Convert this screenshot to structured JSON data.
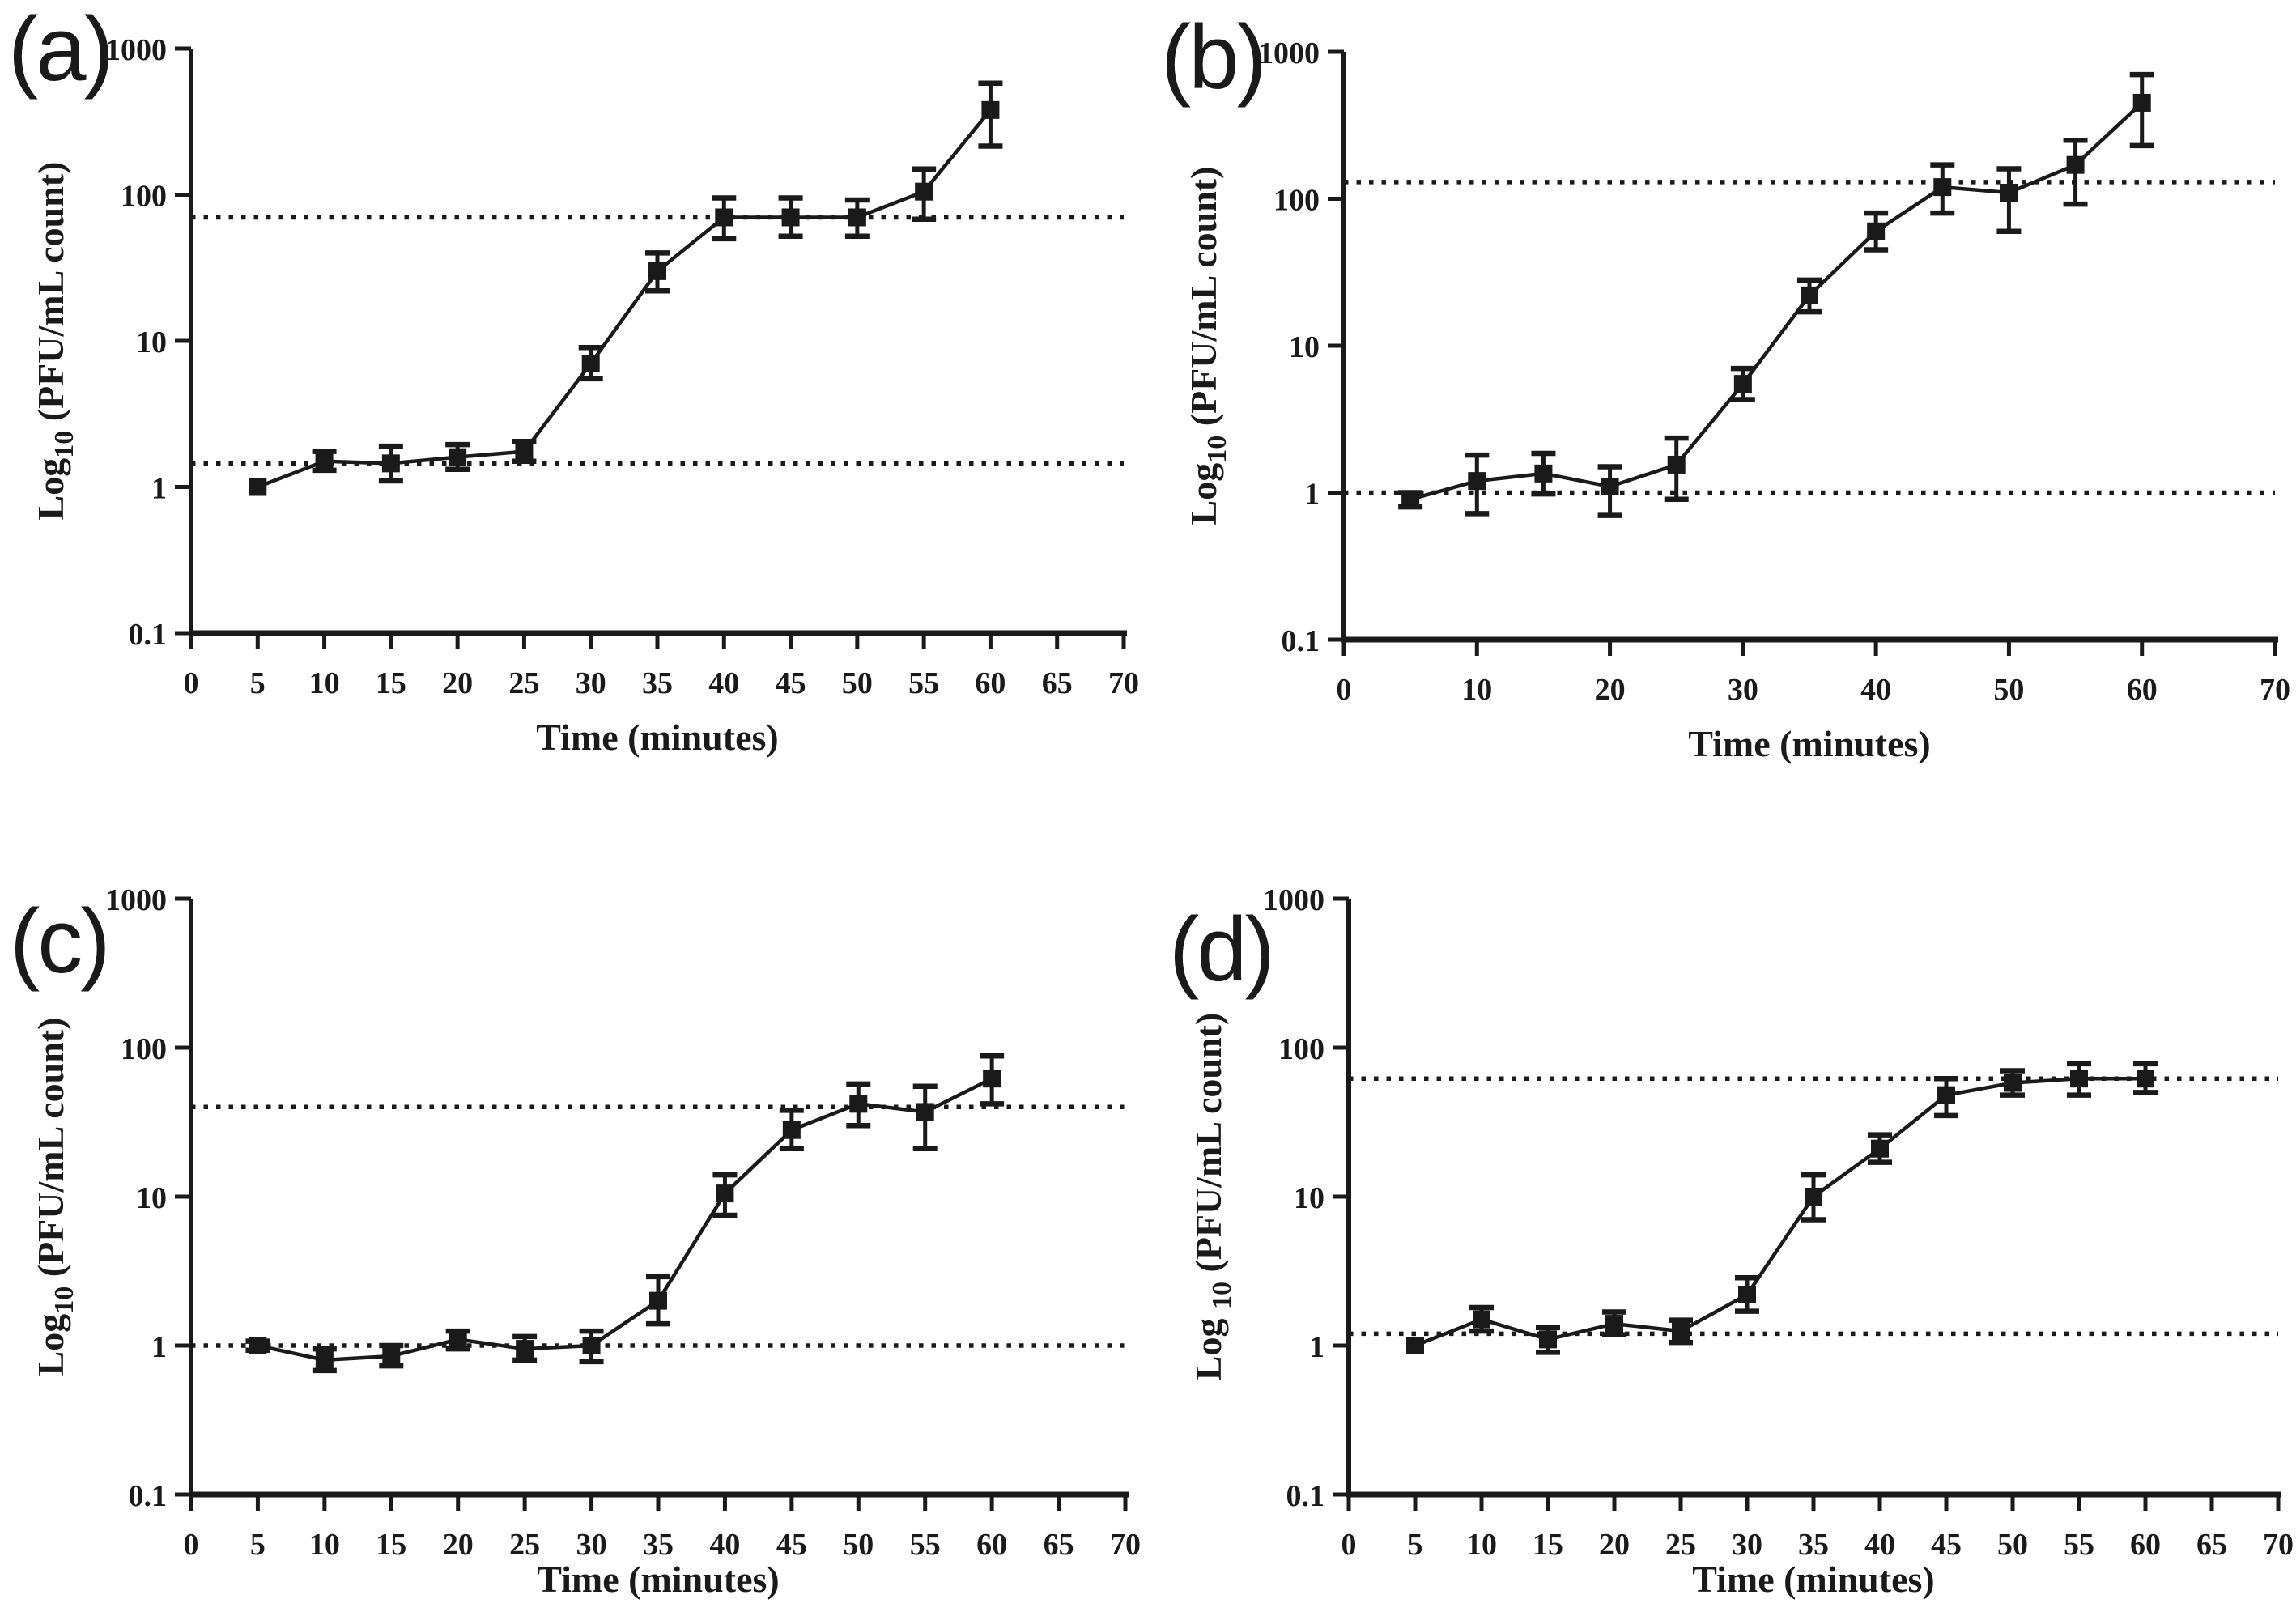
{
  "figure": {
    "background_color": "#ffffff",
    "line_color": "#1a1a1a",
    "ref_line_color": "#1a1a1a"
  },
  "chart_data": [
    {
      "panel_label": "(a)",
      "type": "line",
      "title": "",
      "xlabel": "Time (minutes)",
      "ylabel": "Log10 (PFU/mL count)",
      "ylabel_prefix": "Log",
      "ylabel_sub": "10",
      "ylabel_rest": " (PFU/mL count)",
      "xlim": [
        0,
        70
      ],
      "ylim": [
        0.1,
        1000
      ],
      "x_ticks": [
        0,
        5,
        10,
        15,
        20,
        25,
        30,
        35,
        40,
        45,
        50,
        55,
        60,
        65,
        70
      ],
      "x_tick_labels": [
        "0",
        "5",
        "10",
        "15",
        "20",
        "25",
        "30",
        "35",
        "40",
        "45",
        "50",
        "55",
        "60",
        "65",
        "70"
      ],
      "y_ticks": [
        0.1,
        1,
        10,
        100,
        1000
      ],
      "y_tick_labels": [
        "0.1",
        "1",
        "10",
        "100",
        "1000"
      ],
      "grid": false,
      "legend": null,
      "x": [
        5,
        10,
        15,
        20,
        25,
        30,
        35,
        40,
        45,
        50,
        55,
        60
      ],
      "y": [
        1.0,
        1.5,
        1.45,
        1.6,
        1.75,
        7,
        30,
        70,
        70,
        70,
        105,
        380
      ],
      "err_low": [
        1.0,
        1.3,
        1.1,
        1.32,
        1.5,
        5.5,
        22,
        50,
        52,
        52,
        68,
        215
      ],
      "err_high": [
        1.0,
        1.75,
        1.9,
        1.95,
        2.05,
        9,
        40,
        95,
        95,
        92,
        150,
        580
      ],
      "ref_lines": [
        70,
        1.45
      ]
    },
    {
      "panel_label": "(b)",
      "type": "line",
      "title": "",
      "xlabel": "Time (minutes)",
      "ylabel": "Log10 (PFU/mL count)",
      "ylabel_prefix": "Log",
      "ylabel_sub": "10",
      "ylabel_rest": " (PFU/mL count)",
      "xlim": [
        0,
        70
      ],
      "ylim": [
        0.1,
        1000
      ],
      "x_ticks": [
        0,
        10,
        20,
        30,
        40,
        50,
        60,
        70
      ],
      "x_tick_labels": [
        "0",
        "10",
        "20",
        "30",
        "40",
        "50",
        "60",
        "70"
      ],
      "y_ticks": [
        0.1,
        1,
        10,
        100,
        1000
      ],
      "y_tick_labels": [
        "0.1",
        "1",
        "10",
        "100",
        "1000"
      ],
      "grid": false,
      "legend": null,
      "x": [
        5,
        10,
        15,
        20,
        25,
        30,
        35,
        40,
        45,
        50,
        55,
        60
      ],
      "y": [
        0.9,
        1.2,
        1.35,
        1.1,
        1.55,
        5.5,
        22,
        60,
        120,
        110,
        170,
        450
      ],
      "err_low": [
        0.8,
        0.72,
        0.98,
        0.7,
        0.9,
        4.3,
        17,
        45,
        80,
        60,
        92,
        230
      ],
      "err_high": [
        1.0,
        1.8,
        1.85,
        1.5,
        2.35,
        7,
        28,
        80,
        170,
        160,
        250,
        700
      ],
      "ref_lines": [
        130,
        1.0
      ]
    },
    {
      "panel_label": "(c)",
      "type": "line",
      "title": "",
      "xlabel": "Time (minutes)",
      "ylabel": "Log10 (PFU/mL count)",
      "ylabel_prefix": "Log",
      "ylabel_sub": "10",
      "ylabel_rest": " (PFU/mL count)",
      "xlim": [
        0,
        70
      ],
      "ylim": [
        0.1,
        1000
      ],
      "x_ticks": [
        0,
        5,
        10,
        15,
        20,
        25,
        30,
        35,
        40,
        45,
        50,
        55,
        60,
        65,
        70
      ],
      "x_tick_labels": [
        "0",
        "5",
        "10",
        "15",
        "20",
        "25",
        "30",
        "35",
        "40",
        "45",
        "50",
        "55",
        "60",
        "65",
        "70"
      ],
      "y_ticks": [
        0.1,
        1,
        10,
        100,
        1000
      ],
      "y_tick_labels": [
        "0.1",
        "1",
        "10",
        "100",
        "1000"
      ],
      "grid": false,
      "legend": null,
      "x": [
        5,
        10,
        15,
        20,
        25,
        30,
        35,
        40,
        45,
        50,
        55,
        60
      ],
      "y": [
        1.0,
        0.8,
        0.85,
        1.1,
        0.95,
        1.0,
        2.0,
        10.5,
        28,
        42,
        37,
        62
      ],
      "err_low": [
        0.93,
        0.68,
        0.73,
        0.95,
        0.8,
        0.78,
        1.4,
        7.5,
        21,
        30,
        21,
        42
      ],
      "err_high": [
        1.07,
        0.95,
        1.0,
        1.25,
        1.15,
        1.25,
        2.9,
        14,
        38,
        57,
        55,
        88
      ],
      "ref_lines": [
        40,
        1.0
      ]
    },
    {
      "panel_label": "(d)",
      "type": "line",
      "title": "",
      "xlabel": "Time (minutes)",
      "ylabel": "Log 10 (PFU/mL count)",
      "ylabel_prefix": "Log ",
      "ylabel_sub": "10",
      "ylabel_rest": " (PFU/mL count)",
      "xlim": [
        0,
        70
      ],
      "ylim": [
        0.1,
        1000
      ],
      "x_ticks": [
        0,
        5,
        10,
        15,
        20,
        25,
        30,
        35,
        40,
        45,
        50,
        55,
        60,
        65,
        70
      ],
      "x_tick_labels": [
        "0",
        "5",
        "10",
        "15",
        "20",
        "25",
        "30",
        "35",
        "40",
        "45",
        "50",
        "55",
        "60",
        "65",
        "70"
      ],
      "y_ticks": [
        0.1,
        1,
        10,
        100,
        1000
      ],
      "y_tick_labels": [
        "0.1",
        "1",
        "10",
        "100",
        "1000"
      ],
      "grid": false,
      "legend": null,
      "x": [
        5,
        10,
        15,
        20,
        25,
        30,
        35,
        40,
        45,
        50,
        55,
        60
      ],
      "y": [
        1.0,
        1.5,
        1.1,
        1.4,
        1.25,
        2.2,
        10,
        21,
        48,
        58,
        62,
        62
      ],
      "err_low": [
        1.0,
        1.25,
        0.9,
        1.18,
        1.05,
        1.7,
        7,
        17,
        35,
        48,
        48,
        50
      ],
      "err_high": [
        1.0,
        1.8,
        1.32,
        1.68,
        1.48,
        2.85,
        14,
        26,
        62,
        70,
        78,
        78
      ],
      "ref_lines": [
        62,
        1.2
      ]
    }
  ]
}
